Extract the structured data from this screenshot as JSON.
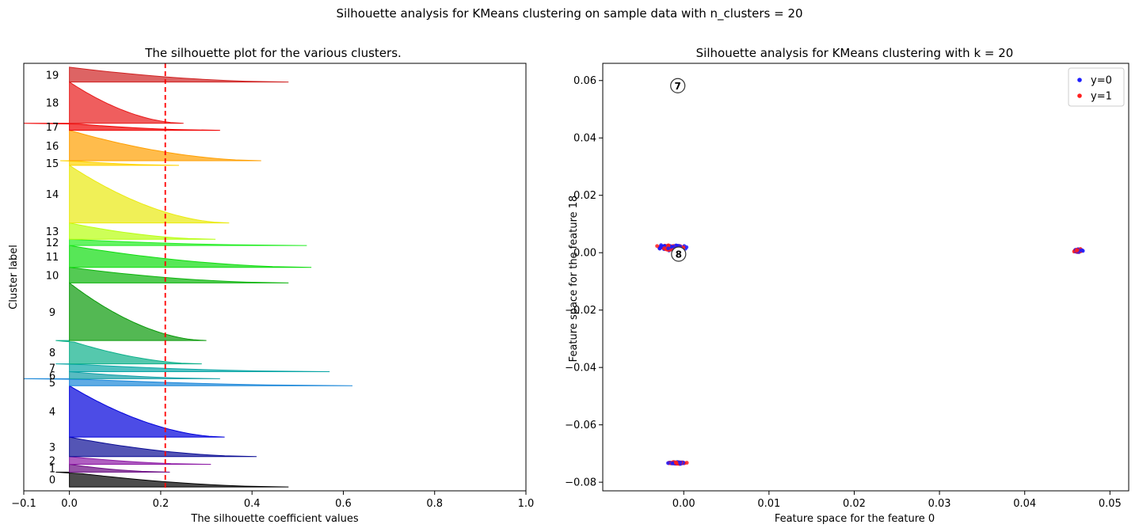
{
  "figure": {
    "suptitle": "Silhouette analysis for KMeans clustering on sample data with n_clusters = 20"
  },
  "chart_data": [
    {
      "type": "area",
      "title": "The silhouette plot for the various clusters.",
      "xlabel": "The silhouette coefficient values",
      "ylabel": "Cluster label",
      "xlim": [
        -0.1,
        1.0
      ],
      "xticks": [
        -0.1,
        0.0,
        0.2,
        0.4,
        0.6,
        0.8,
        1.0
      ],
      "xtick_labels": [
        "−0.1",
        "0.0",
        "0.2",
        "0.4",
        "0.6",
        "0.8",
        "1.0"
      ],
      "average_silhouette": 0.21,
      "average_line_color": "#ff0000",
      "clusters": [
        {
          "label": "0",
          "color": "#000000",
          "start": 0,
          "end": 19,
          "max": 0.48,
          "min": -0.03
        },
        {
          "label": "1",
          "color": "#6a0a82",
          "start": 19,
          "end": 29,
          "max": 0.22,
          "min": 0.0
        },
        {
          "label": "2",
          "color": "#8d1aa5",
          "start": 29,
          "end": 39,
          "max": 0.31,
          "min": 0.0
        },
        {
          "label": "3",
          "color": "#0b0d95",
          "start": 39,
          "end": 64,
          "max": 0.41,
          "min": 0.0
        },
        {
          "label": "4",
          "color": "#0000dc",
          "start": 64,
          "end": 130,
          "max": 0.34,
          "min": 0.0
        },
        {
          "label": "5",
          "color": "#1a87d9",
          "start": 130,
          "end": 139,
          "max": 0.62,
          "min": -0.1
        },
        {
          "label": "6",
          "color": "#129ea6",
          "start": 139,
          "end": 148,
          "max": 0.33,
          "min": 0.0
        },
        {
          "label": "7",
          "color": "#0aa6a6",
          "start": 148,
          "end": 158,
          "max": 0.57,
          "min": -0.03
        },
        {
          "label": "8",
          "color": "#0db08a",
          "start": 158,
          "end": 188,
          "max": 0.29,
          "min": -0.03
        },
        {
          "label": "9",
          "color": "#0a9a0a",
          "start": 188,
          "end": 262,
          "max": 0.3,
          "min": 0.0
        },
        {
          "label": "10",
          "color": "#0cb40c",
          "start": 262,
          "end": 282,
          "max": 0.48,
          "min": 0.0
        },
        {
          "label": "11",
          "color": "#10dd10",
          "start": 282,
          "end": 310,
          "max": 0.53,
          "min": 0.0
        },
        {
          "label": "12",
          "color": "#22ee22",
          "start": 310,
          "end": 318,
          "max": 0.52,
          "min": 0.0
        },
        {
          "label": "13",
          "color": "#b8ff10",
          "start": 318,
          "end": 339,
          "max": 0.32,
          "min": 0.0
        },
        {
          "label": "14",
          "color": "#eaea10",
          "start": 339,
          "end": 413,
          "max": 0.35,
          "min": 0.0
        },
        {
          "label": "15",
          "color": "#ffd400",
          "start": 413,
          "end": 419,
          "max": 0.24,
          "min": -0.02
        },
        {
          "label": "16",
          "color": "#ff9f00",
          "start": 419,
          "end": 458,
          "max": 0.42,
          "min": 0.0
        },
        {
          "label": "17",
          "color": "#f00000",
          "start": 458,
          "end": 467,
          "max": 0.33,
          "min": -0.1
        },
        {
          "label": "18",
          "color": "#e81a1a",
          "start": 467,
          "end": 520,
          "max": 0.25,
          "min": 0.0
        },
        {
          "label": "19",
          "color": "#cf2222",
          "start": 520,
          "end": 539,
          "max": 0.48,
          "min": 0.0
        }
      ]
    },
    {
      "type": "scatter",
      "title": "Silhouette analysis for KMeans clustering with k = 20",
      "xlabel": "Feature space for the feature 0",
      "ylabel": "Feature space for the feature 18",
      "xlim": [
        -0.0095,
        0.0522
      ],
      "ylim": [
        -0.083,
        0.066
      ],
      "xticks": [
        0.0,
        0.01,
        0.02,
        0.03,
        0.04,
        0.05
      ],
      "xtick_labels": [
        "0.00",
        "0.01",
        "0.02",
        "0.03",
        "0.04",
        "0.05"
      ],
      "yticks": [
        -0.08,
        -0.06,
        -0.04,
        -0.02,
        0.0,
        0.02,
        0.04,
        0.06
      ],
      "ytick_labels": [
        "−0.08",
        "−0.06",
        "−0.04",
        "−0.02",
        "0.00",
        "0.02",
        "0.04",
        "0.06"
      ],
      "legend_position": "top-right",
      "series": [
        {
          "name": "y=0",
          "color": "#1f1fff"
        },
        {
          "name": "y=1",
          "color": "#ff1f1f"
        }
      ],
      "point_groups": [
        {
          "cx": -0.0015,
          "cy": 0.0018,
          "sx": 0.0009,
          "sy": 0.0005
        },
        {
          "cx": -0.0008,
          "cy": -0.0733,
          "sx": 0.0006,
          "sy": 0.0002
        },
        {
          "cx": 0.0463,
          "cy": 0.0007,
          "sx": 0.0003,
          "sy": 0.0003
        }
      ],
      "centers": [
        {
          "label": "7",
          "x": -0.0007,
          "y": 0.0582
        },
        {
          "label": "8",
          "x": -0.0006,
          "y": -0.0005
        }
      ]
    }
  ]
}
